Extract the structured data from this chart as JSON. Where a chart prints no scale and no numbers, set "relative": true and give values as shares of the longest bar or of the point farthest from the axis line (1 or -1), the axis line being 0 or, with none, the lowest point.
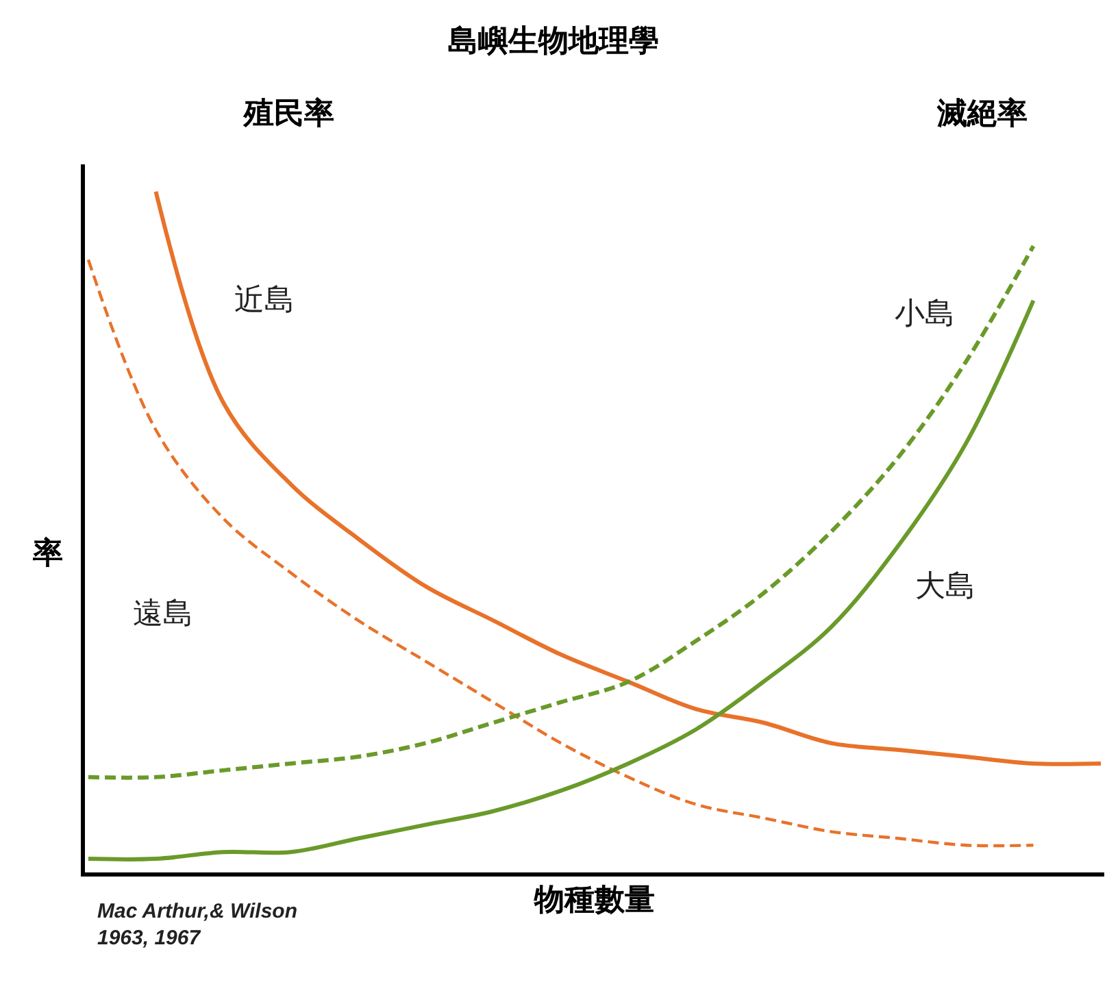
{
  "chart_data": {
    "type": "line",
    "title": "島嶼生物地理學",
    "xlabel": "物種數量",
    "ylabel": "率",
    "relative": true,
    "legend": false,
    "tick_labels": false,
    "marker": "none",
    "categories": [
      null,
      null,
      null,
      null,
      null,
      null,
      null,
      null,
      null,
      null,
      null,
      null,
      null,
      null,
      null,
      null
    ],
    "series": [
      {
        "name": "近島",
        "color": "#e8722a",
        "line_style": "solid",
        "values": [
          null,
          1.0,
          0.69,
          0.57,
          0.49,
          0.42,
          0.37,
          0.32,
          0.28,
          0.24,
          0.22,
          0.19,
          0.18,
          0.17,
          0.16,
          0.16
        ]
      },
      {
        "name": "遠島",
        "color": "#e8722a",
        "line_style": "dashed",
        "values": [
          0.9,
          0.65,
          0.52,
          0.44,
          0.37,
          0.31,
          0.25,
          0.19,
          0.14,
          0.1,
          0.08,
          0.06,
          0.05,
          0.04,
          0.04,
          null
        ]
      },
      {
        "name": "小島",
        "color": "#6a9a2a",
        "line_style": "dashed",
        "values": [
          0.14,
          0.14,
          0.15,
          0.16,
          0.17,
          0.19,
          0.22,
          0.25,
          0.28,
          0.34,
          0.41,
          0.5,
          0.61,
          0.75,
          0.92,
          null
        ]
      },
      {
        "name": "大島",
        "color": "#6a9a2a",
        "line_style": "solid",
        "values": [
          0.02,
          0.02,
          0.03,
          0.03,
          0.05,
          0.07,
          0.09,
          0.12,
          0.16,
          0.21,
          0.28,
          0.36,
          0.48,
          0.63,
          0.84,
          null
        ]
      }
    ],
    "annotations": [
      "殖民率",
      "滅絕率",
      "Mac Arthur,& Wilson\n1963, 1967"
    ]
  }
}
